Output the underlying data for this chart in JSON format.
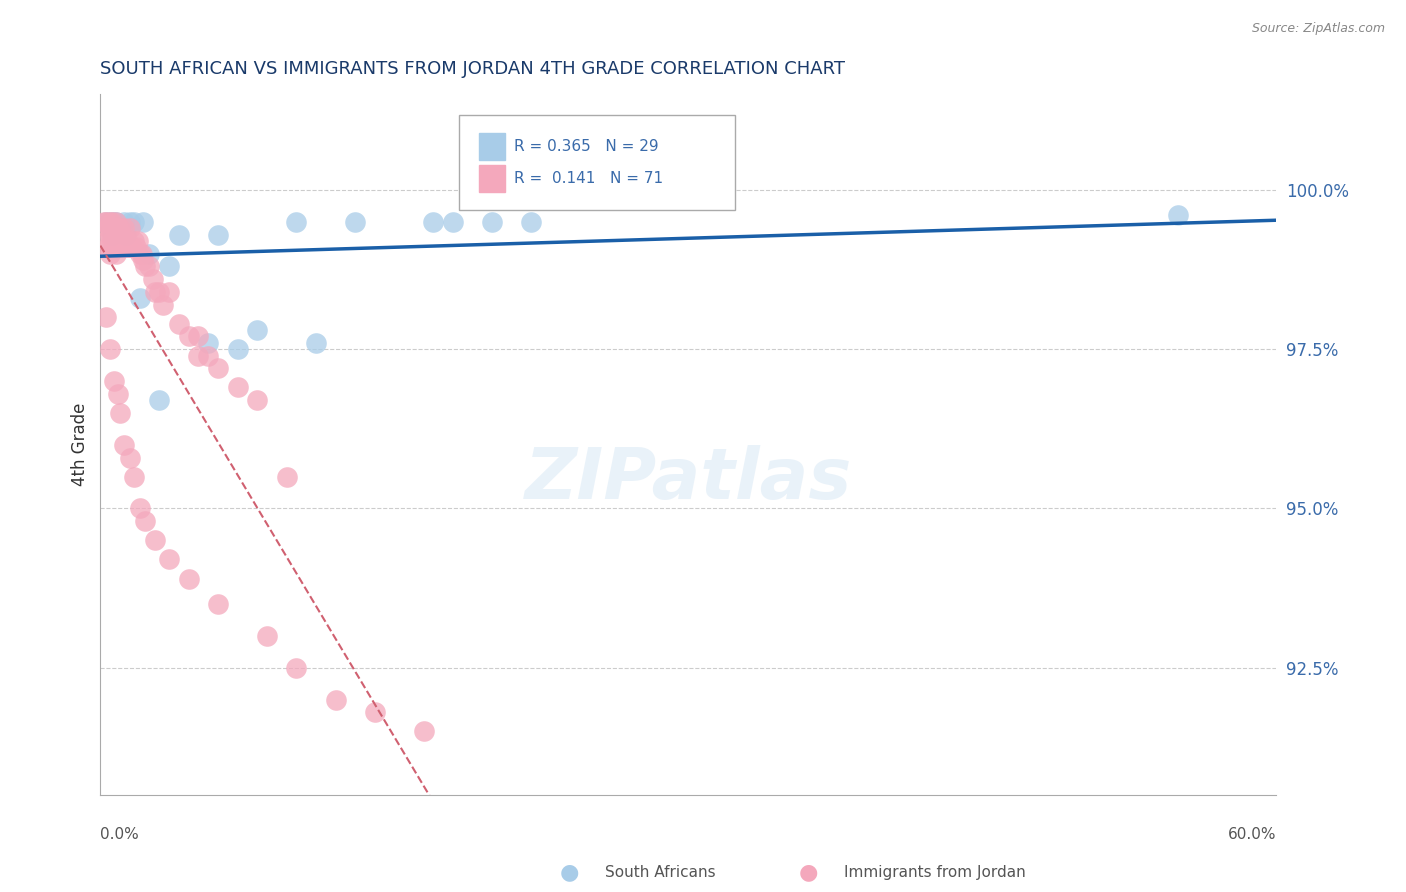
{
  "title": "SOUTH AFRICAN VS IMMIGRANTS FROM JORDAN 4TH GRADE CORRELATION CHART",
  "source": "Source: ZipAtlas.com",
  "ylabel": "4th Grade",
  "ylabel_ticks": [
    "92.5%",
    "95.0%",
    "97.5%",
    "100.0%"
  ],
  "ylabel_vals": [
    92.5,
    95.0,
    97.5,
    100.0
  ],
  "xlim": [
    0.0,
    60.0
  ],
  "ylim": [
    90.5,
    101.5
  ],
  "blue_color": "#A8CCE8",
  "pink_color": "#F4A8BC",
  "blue_line_color": "#1A5FA8",
  "pink_line_color": "#D06070",
  "R_blue": 0.365,
  "N_blue": 29,
  "R_pink": 0.141,
  "N_pink": 71,
  "blue_x": [
    0.3,
    0.5,
    0.6,
    0.7,
    0.8,
    1.0,
    1.1,
    1.2,
    1.3,
    1.5,
    1.7,
    2.0,
    2.2,
    2.5,
    3.0,
    3.5,
    4.0,
    5.5,
    6.0,
    7.0,
    8.0,
    10.0,
    11.0,
    13.0,
    17.0,
    18.0,
    20.0,
    22.0,
    55.0
  ],
  "blue_y": [
    99.5,
    99.5,
    99.3,
    99.5,
    99.5,
    99.4,
    99.4,
    99.5,
    99.3,
    99.5,
    99.5,
    98.3,
    99.5,
    99.0,
    96.7,
    98.8,
    99.3,
    97.6,
    99.3,
    97.5,
    97.8,
    99.5,
    97.6,
    99.5,
    99.5,
    99.5,
    99.5,
    99.5,
    99.6
  ],
  "pink_x": [
    0.2,
    0.3,
    0.3,
    0.4,
    0.4,
    0.5,
    0.5,
    0.5,
    0.6,
    0.6,
    0.7,
    0.7,
    0.8,
    0.8,
    0.8,
    0.9,
    0.9,
    1.0,
    1.0,
    1.1,
    1.2,
    1.2,
    1.3,
    1.4,
    1.5,
    1.5,
    1.6,
    1.7,
    1.8,
    1.9,
    2.0,
    2.1,
    2.2,
    2.3,
    2.5,
    2.7,
    2.8,
    3.0,
    3.2,
    3.5,
    4.0,
    4.5,
    5.0,
    5.0,
    5.5,
    6.0,
    7.0,
    8.0,
    9.5
  ],
  "pink_y": [
    99.5,
    99.5,
    99.2,
    99.4,
    99.1,
    99.5,
    99.3,
    99.0,
    99.5,
    99.2,
    99.4,
    99.1,
    99.5,
    99.3,
    99.0,
    99.4,
    99.1,
    99.4,
    99.1,
    99.3,
    99.4,
    99.1,
    99.2,
    99.1,
    99.4,
    99.1,
    99.1,
    99.2,
    99.1,
    99.2,
    99.0,
    99.0,
    98.9,
    98.8,
    98.8,
    98.6,
    98.4,
    98.4,
    98.2,
    98.4,
    97.9,
    97.7,
    97.7,
    97.4,
    97.4,
    97.2,
    96.9,
    96.7,
    95.5
  ],
  "pink_low_x": [
    0.3,
    0.5,
    0.7,
    0.9,
    1.0,
    1.2,
    1.5,
    1.7,
    2.0,
    2.3,
    2.8,
    3.5,
    4.5,
    6.0,
    8.5,
    10.0,
    12.0,
    14.0,
    16.5
  ],
  "pink_low_y": [
    98.0,
    97.5,
    97.0,
    96.8,
    96.5,
    96.0,
    95.8,
    95.5,
    95.0,
    94.8,
    94.5,
    94.2,
    93.9,
    93.5,
    93.0,
    92.5,
    92.0,
    91.8,
    91.5
  ]
}
